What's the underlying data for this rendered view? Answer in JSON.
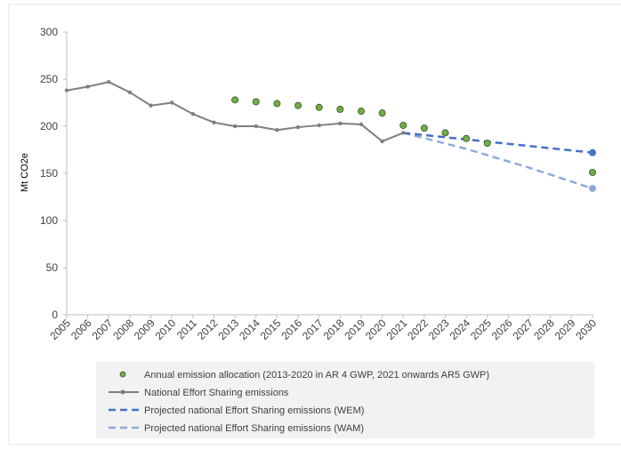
{
  "chart_data": {
    "type": "line",
    "ylabel": "Mt CO2e",
    "ylim": [
      0,
      300
    ],
    "yticks": [
      "0",
      "50",
      "100",
      "150",
      "200",
      "250",
      "300"
    ],
    "categories": [
      "2005",
      "2006",
      "2007",
      "2008",
      "2009",
      "2010",
      "2011",
      "2012",
      "2013",
      "2014",
      "2015",
      "2016",
      "2017",
      "2018",
      "2019",
      "2020",
      "2021",
      "2022",
      "2023",
      "2024",
      "2025",
      "2026",
      "2027",
      "2028",
      "2029",
      "2030"
    ],
    "grid": false,
    "legend_position": "bottom",
    "series": [
      {
        "name": "Annual emission allocation (2013-2020 in AR 4 GWP, 2021 onwards AR5 GWP)",
        "style": "markers",
        "color": "#70ad47",
        "edge_color": "#375623",
        "points": [
          {
            "x": "2013",
            "y": 228
          },
          {
            "x": "2014",
            "y": 226
          },
          {
            "x": "2015",
            "y": 224
          },
          {
            "x": "2016",
            "y": 222
          },
          {
            "x": "2017",
            "y": 220
          },
          {
            "x": "2018",
            "y": 218
          },
          {
            "x": "2019",
            "y": 216
          },
          {
            "x": "2020",
            "y": 214
          },
          {
            "x": "2021",
            "y": 201
          },
          {
            "x": "2022",
            "y": 198
          },
          {
            "x": "2023",
            "y": 193
          },
          {
            "x": "2024",
            "y": 187
          },
          {
            "x": "2025",
            "y": 182
          },
          {
            "x": "2030",
            "y": 151
          }
        ]
      },
      {
        "name": "National Effort Sharing emissions",
        "style": "line-markers",
        "color": "#7f7f7f",
        "points": [
          {
            "x": "2005",
            "y": 238
          },
          {
            "x": "2006",
            "y": 242
          },
          {
            "x": "2007",
            "y": 247
          },
          {
            "x": "2008",
            "y": 236
          },
          {
            "x": "2009",
            "y": 222
          },
          {
            "x": "2010",
            "y": 225
          },
          {
            "x": "2011",
            "y": 213
          },
          {
            "x": "2012",
            "y": 204
          },
          {
            "x": "2013",
            "y": 200
          },
          {
            "x": "2014",
            "y": 200
          },
          {
            "x": "2015",
            "y": 196
          },
          {
            "x": "2016",
            "y": 199
          },
          {
            "x": "2017",
            "y": 201
          },
          {
            "x": "2018",
            "y": 203
          },
          {
            "x": "2019",
            "y": 202
          },
          {
            "x": "2020",
            "y": 184
          },
          {
            "x": "2021",
            "y": 193
          }
        ]
      },
      {
        "name": "Projected national Effort Sharing emissions (WEM)",
        "style": "dashed",
        "color": "#4472c4",
        "points": [
          {
            "x": "2021",
            "y": 193
          },
          {
            "x": "2030",
            "y": 172
          }
        ]
      },
      {
        "name": "Projected national Effort Sharing emissions (WAM)",
        "style": "dashed",
        "color": "#8eaadb",
        "points": [
          {
            "x": "2021",
            "y": 193
          },
          {
            "x": "2024",
            "y": 176
          },
          {
            "x": "2027",
            "y": 156
          },
          {
            "x": "2030",
            "y": 134
          }
        ]
      }
    ]
  }
}
